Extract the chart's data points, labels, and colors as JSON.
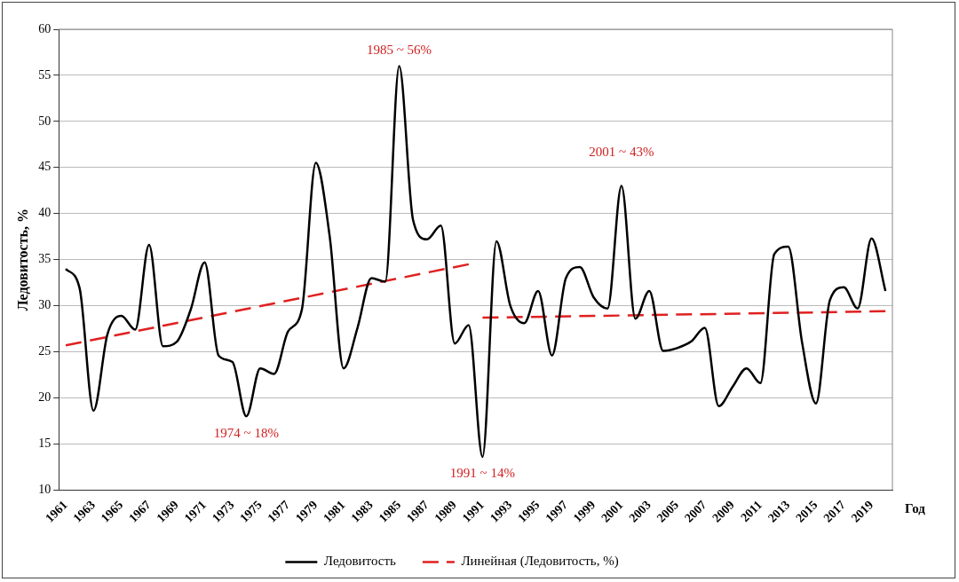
{
  "chart_data": {
    "type": "line",
    "xlabel": "Год",
    "ylabel": "Ледовитость, %",
    "categories": [
      "1961",
      null,
      "1963",
      null,
      "1965",
      null,
      "1967",
      null,
      "1969",
      null,
      "1971",
      null,
      "1973",
      null,
      "1975",
      null,
      "1977",
      null,
      "1979",
      null,
      "1981",
      null,
      "1983",
      null,
      "1985",
      null,
      "1987",
      null,
      "1989",
      null,
      "1991",
      null,
      "1993",
      null,
      "1995",
      null,
      "1997",
      null,
      "1999",
      null,
      "2001",
      null,
      "2003",
      null,
      "2005",
      null,
      "2007",
      null,
      "2009",
      null,
      "2011",
      null,
      "2013",
      null,
      "2015",
      null,
      "2017",
      null,
      "2019",
      null
    ],
    "series": [
      {
        "name": "Ледовитость",
        "color": "#000000",
        "values": [
          34,
          31.9,
          18.6,
          26.9,
          28.9,
          27.4,
          36.6,
          25.6,
          26.1,
          29.6,
          34.7,
          24.6,
          23.9,
          18,
          23.2,
          22.6,
          27.2,
          29.6,
          45.5,
          37.5,
          23.2,
          27.6,
          33,
          32.6,
          56,
          39.3,
          37.2,
          38.7,
          25.9,
          27.9,
          13.6,
          37,
          30,
          28.1,
          31.6,
          24.6,
          33,
          34.2,
          30.9,
          29.7,
          43,
          28.6,
          31.6,
          25.1,
          25.4,
          26.1,
          27.6,
          19.1,
          21.2,
          23.2,
          21.6,
          35.6,
          36.4,
          26,
          19.4,
          30.6,
          32,
          29.7,
          37.3,
          31.6
        ]
      },
      {
        "name": "Линейная (Ледовитость, %)",
        "type": "line",
        "line_style": "dashed",
        "color": "#e02020",
        "values": [
          25.7,
          null,
          null,
          null,
          null,
          null,
          null,
          null,
          null,
          null,
          null,
          null,
          null,
          null,
          null,
          null,
          null,
          null,
          null,
          null,
          null,
          null,
          null,
          null,
          null,
          null,
          null,
          null,
          null,
          34.5,
          null,
          null,
          null,
          null,
          null,
          null,
          null,
          null,
          null,
          null,
          null,
          null,
          null,
          null,
          null,
          null,
          null,
          null,
          null,
          null,
          null,
          null,
          null,
          null,
          null,
          null,
          null,
          null,
          null,
          null
        ]
      },
      {
        "type": "line",
        "line_style": "dashed",
        "color": "#e02020",
        "values": [
          null,
          null,
          null,
          null,
          null,
          null,
          null,
          null,
          null,
          null,
          null,
          null,
          null,
          null,
          null,
          null,
          null,
          null,
          null,
          null,
          null,
          null,
          null,
          null,
          null,
          null,
          null,
          null,
          null,
          null,
          28.7,
          null,
          null,
          null,
          null,
          null,
          null,
          null,
          null,
          null,
          null,
          null,
          null,
          null,
          null,
          null,
          null,
          null,
          null,
          null,
          null,
          null,
          null,
          null,
          null,
          null,
          null,
          null,
          null,
          29.4
        ]
      }
    ],
    "ylim": [
      10,
      60
    ],
    "yticks": [
      10,
      15,
      20,
      25,
      30,
      35,
      40,
      45,
      50,
      55,
      60
    ],
    "grid": "y",
    "legend": "bottom",
    "marker": "none",
    "line_style": "solid",
    "annotations": [
      {
        "text": "1985 ~ 56%",
        "x": "1985",
        "y": 56
      },
      {
        "text": "1974 ~ 18%",
        "y": 18
      },
      {
        "text": "1991 ~ 14%",
        "x": "1991",
        "y": 13.6
      },
      {
        "text": "2001 ~ 43%",
        "x": "2001",
        "y": 43
      }
    ]
  }
}
